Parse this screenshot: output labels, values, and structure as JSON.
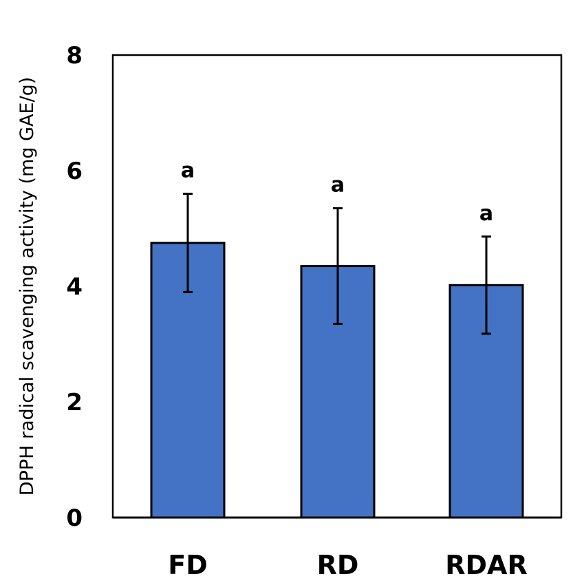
{
  "chart_data": {
    "type": "bar",
    "title": "",
    "xlabel": "",
    "ylabel": "DPPH radical scavenging activity (mg GAE/g)",
    "ylim": [
      0,
      8
    ],
    "yticks": [
      "0",
      "2",
      "4",
      "6",
      "8"
    ],
    "categories": [
      "FD",
      "RD",
      "RDAR"
    ],
    "values": [
      4.75,
      4.35,
      4.02
    ],
    "errors": [
      0.85,
      1.0,
      0.84
    ],
    "annotations": [
      "a",
      "a",
      "a"
    ],
    "grid": false,
    "bar_color": "#4472C4",
    "edge_color": "#000000"
  }
}
